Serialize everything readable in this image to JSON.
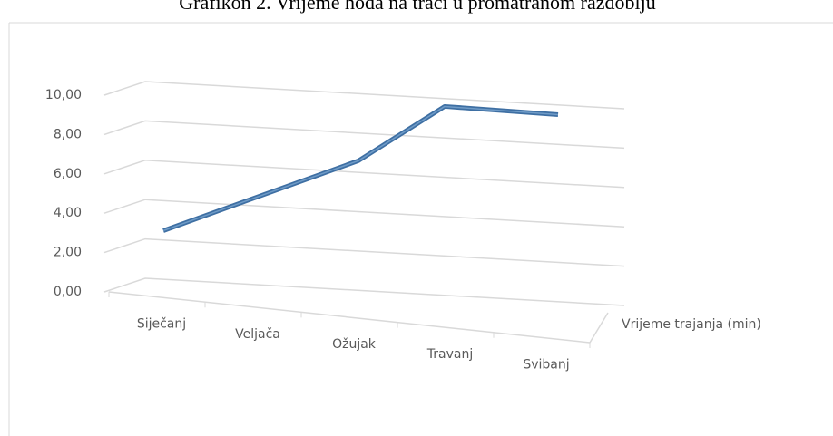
{
  "chart_data": {
    "type": "line",
    "title": "Grafikon 2. Vrijeme hoda na traci u promatranom razdoblju",
    "categories": [
      "Siječanj",
      "Veljača",
      "Ožujak",
      "Travanj",
      "Svibanj"
    ],
    "series": [
      {
        "name": "Vrijeme trajanja (min)",
        "color": "#3e6fa3",
        "values": [
          2.2,
          4.3,
          6.3,
          9.3,
          9.2
        ]
      }
    ],
    "ylim": [
      0,
      10
    ],
    "yticks": [
      {
        "value": 0,
        "label": "0,00"
      },
      {
        "value": 2,
        "label": "2,00"
      },
      {
        "value": 4,
        "label": "4,00"
      },
      {
        "value": 6,
        "label": "6,00"
      },
      {
        "value": 8,
        "label": "8,00"
      },
      {
        "value": 10,
        "label": "10,00"
      }
    ],
    "grid": true
  }
}
